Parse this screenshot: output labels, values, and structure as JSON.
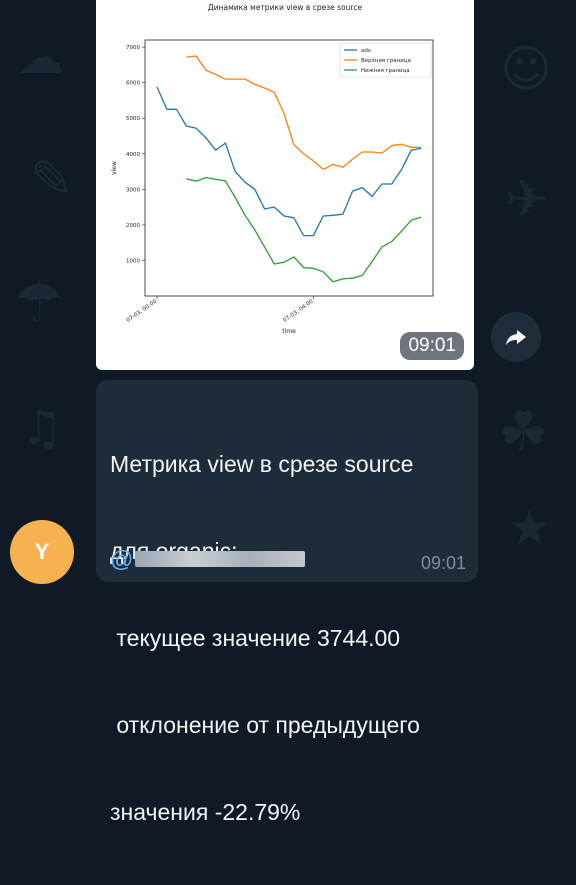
{
  "chat": {
    "avatar_letter": "Y",
    "photo_time": "09:01",
    "message_lines": [
      "Метрика view в срезе source",
      "для organic:",
      " текущее значение 3744.00",
      " отклонение от предыдущего",
      "значения -22.79%"
    ],
    "mention_prefix": "@",
    "message_time": "09:01"
  },
  "chart_data": {
    "type": "line",
    "title": "Динамика метрики view в срезе source",
    "xlabel": "time",
    "ylabel": "view",
    "ylim": [
      0,
      7200
    ],
    "yticks": [
      1000,
      2000,
      3000,
      4000,
      5000,
      6000,
      7000
    ],
    "xticks": [
      {
        "label": "07-03, 00:00",
        "index": 0
      },
      {
        "label": "07-03, 04:00",
        "index": 16
      }
    ],
    "grid": false,
    "legend_position": "top-right",
    "series": [
      {
        "name": "ads",
        "color": "#1f77b4",
        "values": [
          5880,
          5250,
          5250,
          4780,
          4720,
          4450,
          4100,
          4300,
          3500,
          3200,
          3000,
          2450,
          2500,
          2250,
          2200,
          1700,
          1700,
          2250,
          2270,
          2300,
          2950,
          3050,
          2800,
          3150,
          3150,
          3550,
          4100,
          4150
        ]
      },
      {
        "name": "Верхняя граница",
        "color": "#ff7f0e",
        "values": [
          null,
          null,
          null,
          6720,
          6750,
          6350,
          6230,
          6100,
          6100,
          6100,
          5950,
          5850,
          5730,
          5130,
          4250,
          4000,
          3800,
          3560,
          3700,
          3620,
          3850,
          4050,
          4050,
          4020,
          4230,
          4270,
          4180,
          4180
        ]
      },
      {
        "name": "Нижняя граница",
        "color": "#2ca02c",
        "values": [
          null,
          null,
          null,
          3300,
          3230,
          3330,
          3280,
          3240,
          2770,
          2270,
          1860,
          1380,
          900,
          950,
          1100,
          800,
          780,
          680,
          400,
          480,
          500,
          580,
          970,
          1380,
          1530,
          1820,
          2130,
          2220
        ]
      }
    ]
  }
}
